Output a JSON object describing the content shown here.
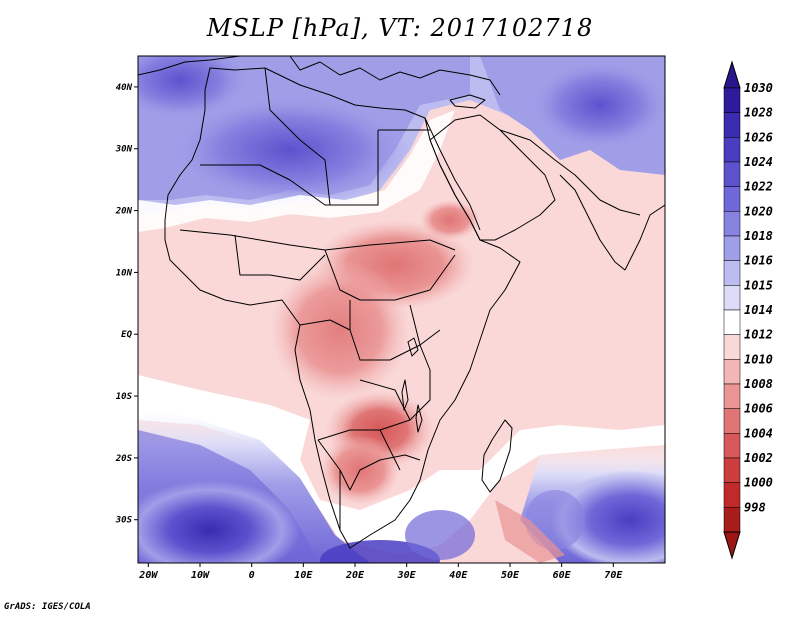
{
  "title": "MSLP [hPa], VT: 2017102718",
  "credit": "GrADS: IGES/COLA",
  "map": {
    "lon_range": [
      -22,
      80
    ],
    "lat_range": [
      -37,
      45
    ],
    "lon_ticks": [
      {
        "lon": -20,
        "label": "20W"
      },
      {
        "lon": -10,
        "label": "10W"
      },
      {
        "lon": 0,
        "label": "0"
      },
      {
        "lon": 10,
        "label": "10E"
      },
      {
        "lon": 20,
        "label": "20E"
      },
      {
        "lon": 30,
        "label": "30E"
      },
      {
        "lon": 40,
        "label": "40E"
      },
      {
        "lon": 50,
        "label": "50E"
      },
      {
        "lon": 60,
        "label": "60E"
      },
      {
        "lon": 70,
        "label": "70E"
      }
    ],
    "lat_ticks": [
      {
        "lat": 40,
        "label": "40N"
      },
      {
        "lat": 30,
        "label": "30N"
      },
      {
        "lat": 20,
        "label": "20N"
      },
      {
        "lat": 10,
        "label": "10N"
      },
      {
        "lat": 0,
        "label": "EQ"
      },
      {
        "lat": -10,
        "label": "10S"
      },
      {
        "lat": -20,
        "label": "20S"
      },
      {
        "lat": -30,
        "label": "30S"
      }
    ]
  },
  "colorbar": {
    "levels": [
      "1030",
      "1028",
      "1026",
      "1024",
      "1022",
      "1020",
      "1018",
      "1016",
      "1015",
      "1014",
      "1012",
      "1010",
      "1008",
      "1006",
      "1004",
      "1002",
      "1000",
      "998"
    ],
    "colors": [
      "#2e1a9c",
      "#3a2bb0",
      "#4a3dc2",
      "#5d52ce",
      "#7068d8",
      "#8882e0",
      "#a19ee8",
      "#bcbcf0",
      "#dcdcf8",
      "#ffffff",
      "#fad8d8",
      "#f3b6b6",
      "#ea9494",
      "#e07575",
      "#d65858",
      "#cc3e3e",
      "#c02a2a",
      "#a81c1c"
    ],
    "top_arrow_color": "#2a168c",
    "bottom_arrow_color": "#9c1616"
  }
}
